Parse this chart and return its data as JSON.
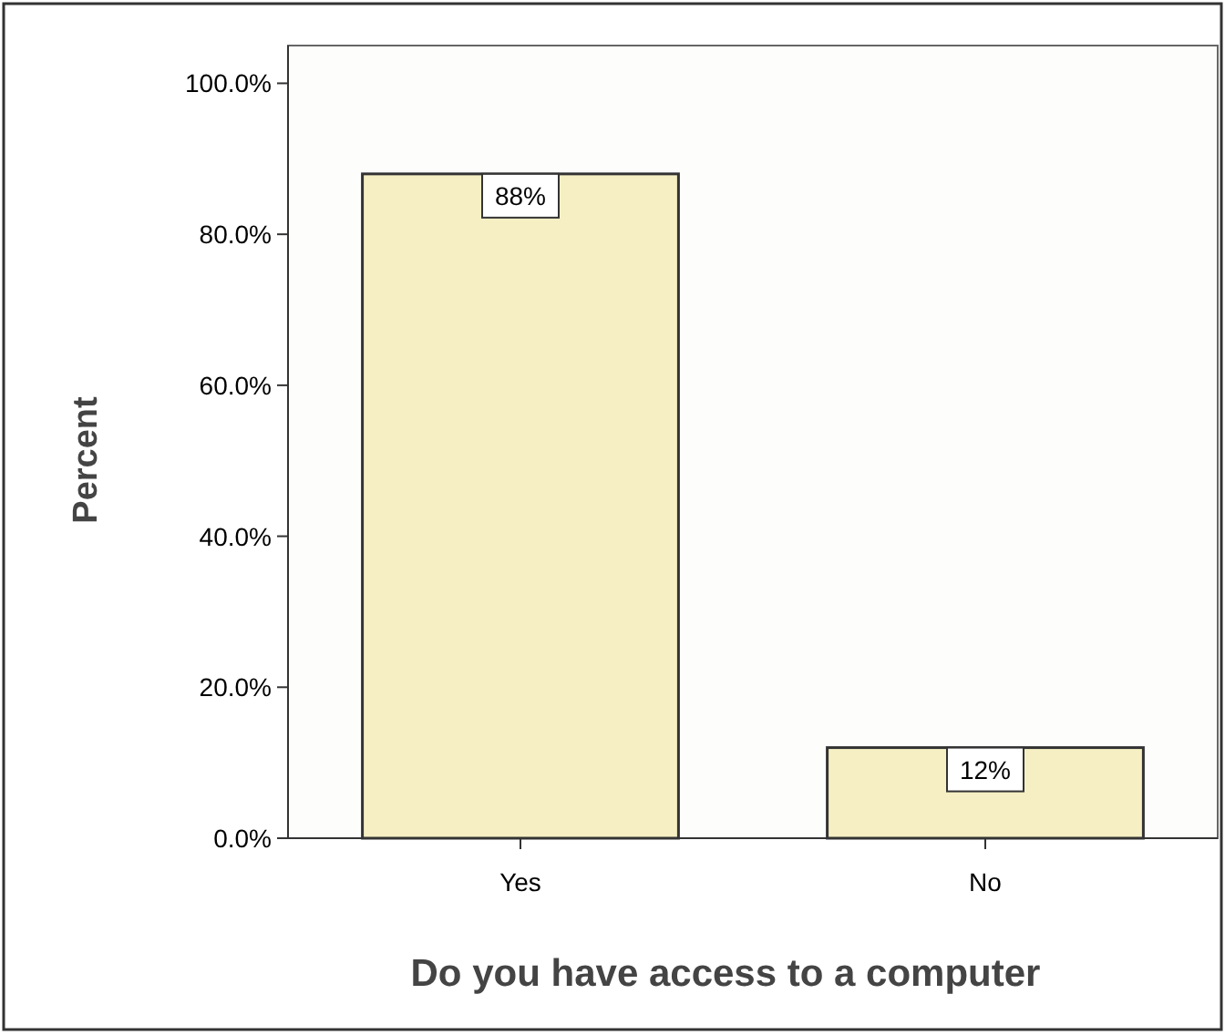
{
  "chart_data": {
    "type": "bar",
    "xlabel": "Do you have access to a computer",
    "ylabel": "Percent",
    "categories": [
      "Yes",
      "No"
    ],
    "values": [
      88,
      12
    ],
    "value_labels": [
      "88%",
      "12%"
    ],
    "color": "#f5efc3",
    "ylim": [
      0,
      105
    ],
    "yticks": [
      {
        "value": 0,
        "label": "0.0%"
      },
      {
        "value": 20,
        "label": "20.0%"
      },
      {
        "value": 40,
        "label": "40.0%"
      },
      {
        "value": 60,
        "label": "60.0%"
      },
      {
        "value": 80,
        "label": "80.0%"
      },
      {
        "value": 100,
        "label": "100.0%"
      }
    ],
    "grid": false
  }
}
